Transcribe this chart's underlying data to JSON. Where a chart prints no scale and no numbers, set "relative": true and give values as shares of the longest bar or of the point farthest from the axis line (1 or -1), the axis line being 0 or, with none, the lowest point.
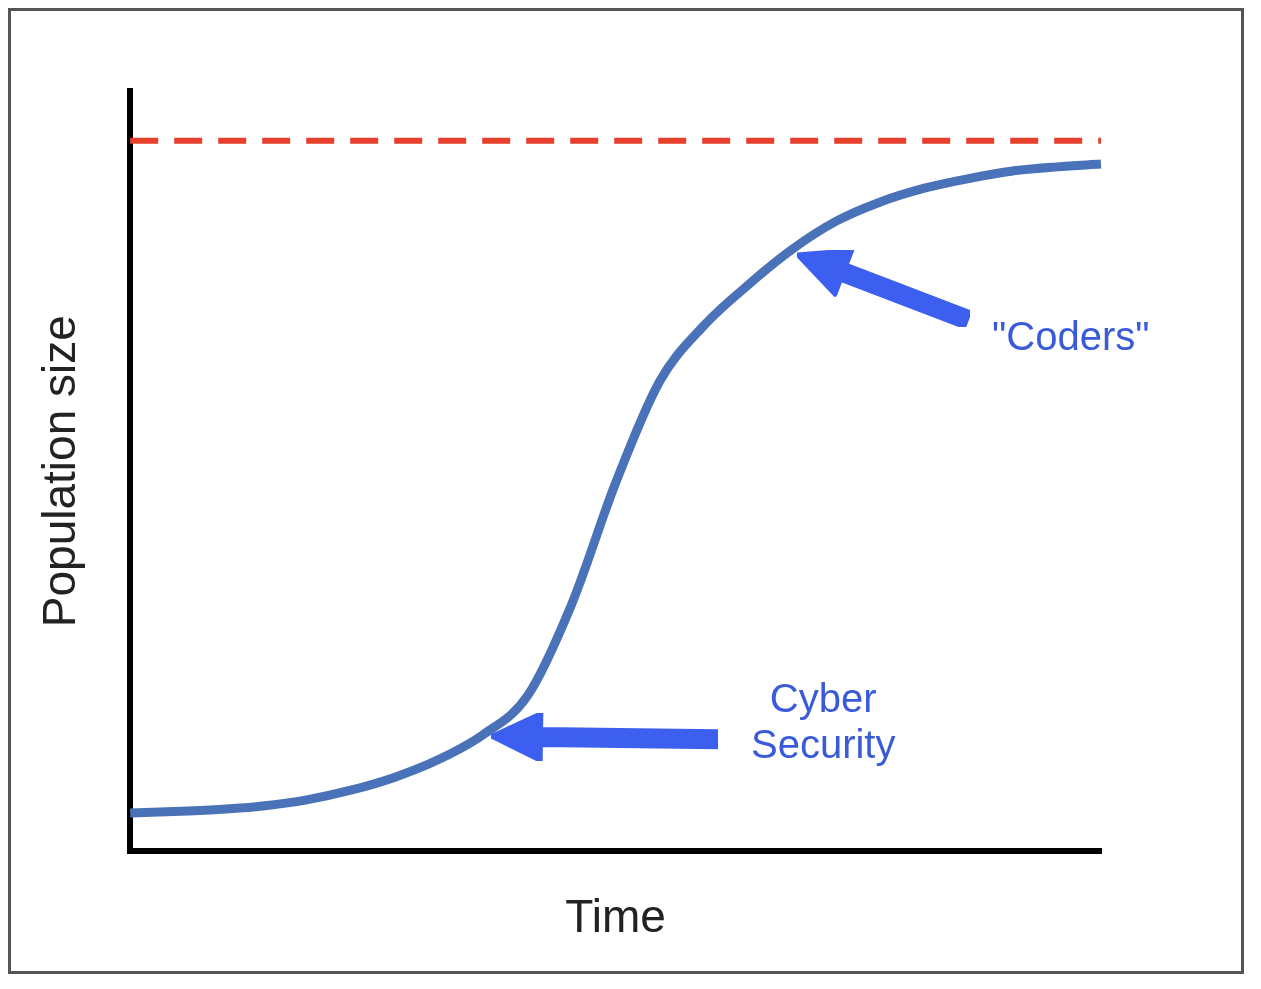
{
  "chart_data": {
    "type": "line",
    "relative": true,
    "xlabel": "Time",
    "ylabel": "Population size",
    "categories": [
      null,
      null,
      null,
      null,
      null,
      null,
      null,
      null,
      null,
      null,
      null,
      null,
      null,
      null,
      null,
      null,
      null,
      null,
      null,
      null,
      null,
      null,
      null
    ],
    "series": [
      {
        "color": "#4a72b8",
        "values": [
          0.056,
          0.058,
          0.061,
          0.066,
          0.075,
          0.089,
          0.108,
          0.134,
          0.17,
          0.226,
          0.359,
          0.536,
          0.684,
          0.765,
          0.824,
          0.876,
          0.917,
          0.945,
          0.965,
          0.979,
          0.99,
          0.996,
          1
        ]
      }
    ],
    "ref_lines": [
      {
        "axis": "y",
        "value": 1.034,
        "color": "#e8402f",
        "line_style": "dashed"
      }
    ],
    "annotations": [
      "\"Coders\"",
      "Cyber Security"
    ],
    "grid": false,
    "legend": false,
    "marker": "none",
    "line_style": "solid"
  }
}
